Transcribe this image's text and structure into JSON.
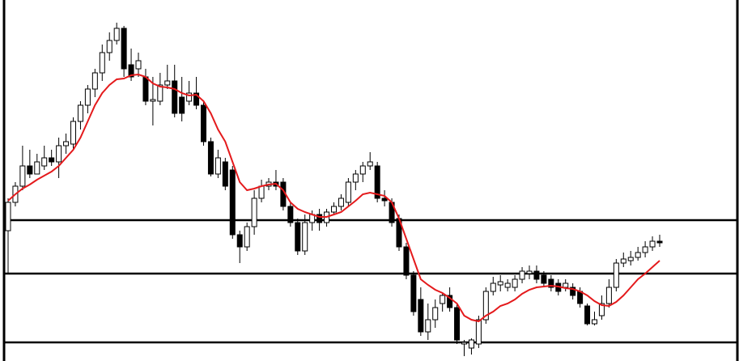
{
  "chart_data": {
    "type": "candlestick",
    "ylim": [
      0,
      446
    ],
    "up_color": "#ffffff",
    "down_color": "#000000",
    "edge_color": "#000000",
    "open": [
      161,
      196,
      216,
      241,
      231,
      241,
      251,
      246,
      266,
      268,
      296,
      316,
      336,
      356,
      381,
      396,
      411,
      366,
      361,
      351,
      321,
      321,
      341,
      346,
      326,
      321,
      331,
      316,
      271,
      231,
      246,
      236,
      156,
      141,
      166,
      201,
      216,
      221,
      221,
      191,
      171,
      136,
      171,
      181,
      171,
      184,
      191,
      196,
      221,
      231,
      241,
      241,
      201,
      196,
      176,
      141,
      106,
      76,
      36,
      51,
      71,
      81,
      66,
      21,
      16,
      21,
      51,
      86,
      94,
      91,
      91,
      101,
      108,
      111,
      106,
      101,
      96,
      91,
      91,
      86,
      68,
      46,
      56,
      71,
      91,
      121,
      124,
      128,
      134,
      141,
      148
    ],
    "high": [
      201,
      221,
      266,
      261,
      256,
      266,
      261,
      276,
      281,
      301,
      321,
      341,
      361,
      391,
      406,
      418,
      414,
      386,
      381,
      361,
      351,
      356,
      366,
      366,
      351,
      346,
      351,
      321,
      276,
      261,
      251,
      241,
      161,
      171,
      211,
      224,
      226,
      236,
      226,
      196,
      176,
      181,
      186,
      188,
      188,
      196,
      206,
      226,
      236,
      246,
      258,
      246,
      211,
      201,
      181,
      146,
      111,
      91,
      71,
      76,
      84,
      91,
      71,
      26,
      28,
      56,
      91,
      104,
      106,
      101,
      106,
      116,
      118,
      118,
      111,
      106,
      101,
      101,
      96,
      91,
      71,
      61,
      81,
      101,
      126,
      134,
      136,
      141,
      148,
      154,
      156
    ],
    "low": [
      108,
      191,
      211,
      226,
      231,
      236,
      241,
      226,
      256,
      261,
      286,
      306,
      326,
      346,
      371,
      391,
      351,
      346,
      351,
      316,
      291,
      316,
      336,
      301,
      296,
      316,
      311,
      266,
      228,
      226,
      211,
      151,
      121,
      136,
      156,
      196,
      211,
      211,
      186,
      166,
      131,
      131,
      161,
      161,
      166,
      181,
      186,
      191,
      211,
      221,
      236,
      196,
      191,
      166,
      136,
      101,
      56,
      31,
      26,
      41,
      61,
      61,
      21,
      6,
      8,
      16,
      46,
      81,
      86,
      86,
      86,
      96,
      101,
      96,
      91,
      86,
      81,
      86,
      76,
      66,
      44,
      44,
      51,
      66,
      86,
      116,
      118,
      124,
      128,
      136,
      141
    ],
    "close": [
      196,
      216,
      241,
      231,
      246,
      251,
      246,
      266,
      271,
      296,
      316,
      336,
      356,
      381,
      396,
      411,
      361,
      351,
      371,
      321,
      323,
      341,
      346,
      306,
      306,
      331,
      316,
      271,
      231,
      251,
      216,
      156,
      141,
      166,
      201,
      216,
      221,
      216,
      191,
      171,
      136,
      171,
      181,
      171,
      184,
      191,
      201,
      221,
      231,
      241,
      246,
      201,
      198,
      171,
      141,
      106,
      61,
      36,
      51,
      66,
      81,
      66,
      26,
      23,
      26,
      51,
      86,
      96,
      98,
      96,
      101,
      111,
      111,
      101,
      96,
      91,
      86,
      96,
      81,
      71,
      46,
      51,
      71,
      91,
      121,
      126,
      128,
      134,
      141,
      148,
      146
    ],
    "overlay": {
      "type": "line",
      "color": "#e41a1c",
      "values": [
        198,
        206,
        213,
        218,
        224,
        229,
        234,
        241,
        251,
        261,
        276,
        296,
        316,
        331,
        341,
        348,
        349,
        353,
        354,
        351,
        343,
        339,
        338,
        336,
        331,
        328,
        329,
        321,
        306,
        286,
        271,
        246,
        221,
        211,
        213,
        216,
        218,
        219,
        211,
        196,
        188,
        184,
        181,
        178,
        178,
        181,
        184,
        191,
        198,
        206,
        208,
        206,
        204,
        196,
        176,
        151,
        126,
        101,
        94,
        88,
        84,
        78,
        71,
        56,
        51,
        49,
        56,
        61,
        68,
        71,
        76,
        83,
        88,
        91,
        92,
        93,
        92,
        90,
        89,
        86,
        81,
        74,
        69,
        68,
        73,
        81,
        91,
        101,
        108,
        116,
        124
      ]
    },
    "hlines": {
      "color": "#000000",
      "values": [
        174,
        108,
        23
      ]
    }
  }
}
